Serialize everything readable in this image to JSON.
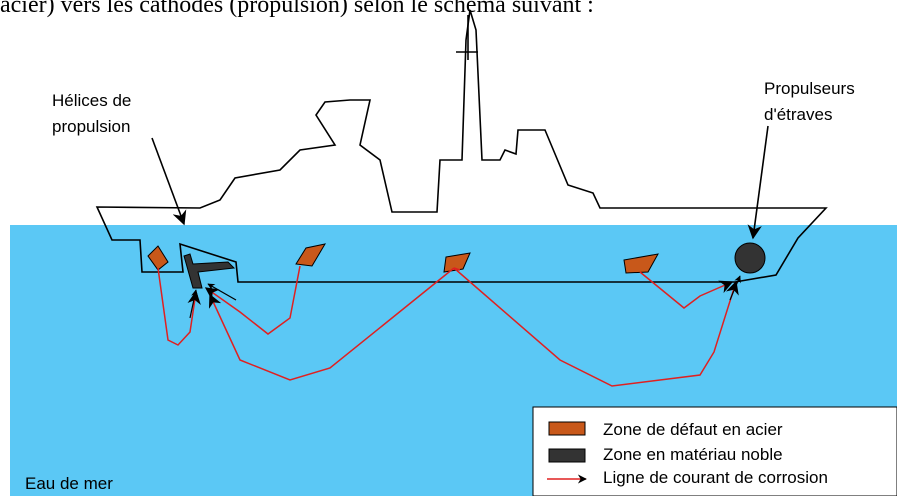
{
  "caption": "acier) vers les cathodes (propulsion) selon le schéma suivant :",
  "labels": {
    "propellers": [
      "Hélices de",
      "propulsion"
    ],
    "thrusters": [
      "Propulseurs",
      "d'étraves"
    ],
    "water": "Eau de mer"
  },
  "legend": [
    "Zone de défaut en acier",
    "Zone en matériau noble",
    "Ligne de courant de corrosion"
  ]
}
